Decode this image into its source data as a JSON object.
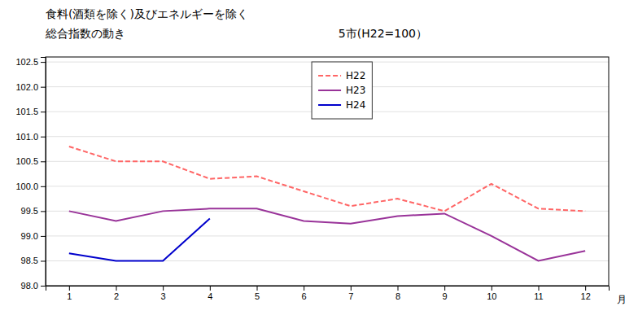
{
  "chart_data": {
    "type": "line",
    "title": "食料(酒類を除く)及びエネルギーを除く",
    "subtitle": "総合指数の動き",
    "annotations": [
      "5市(H22=100）"
    ],
    "x_label": "月",
    "x": [
      1,
      2,
      3,
      4,
      5,
      6,
      7,
      8,
      9,
      10,
      11,
      12
    ],
    "series": [
      {
        "name": "H22",
        "color": "#ff6666",
        "line_style": "dashed",
        "values": [
          100.8,
          100.5,
          100.5,
          100.15,
          100.2,
          99.9,
          99.6,
          99.75,
          99.5,
          100.05,
          99.55,
          99.5
        ]
      },
      {
        "name": "H23",
        "color": "#993399",
        "line_style": "solid",
        "values": [
          99.5,
          99.3,
          99.5,
          99.55,
          99.55,
          99.3,
          99.25,
          99.4,
          99.45,
          99.0,
          98.5,
          98.7
        ]
      },
      {
        "name": "H24",
        "color": "#0000cc",
        "line_style": "solid",
        "values": [
          98.65,
          98.5,
          98.5,
          99.35,
          null,
          null,
          null,
          null,
          null,
          null,
          null,
          null
        ]
      }
    ],
    "xlim": [
      0.5,
      12.5
    ],
    "xticks": [
      1,
      2,
      3,
      4,
      5,
      6,
      7,
      8,
      9,
      10,
      11,
      12
    ],
    "ylim": [
      98.0,
      102.6
    ],
    "yticks": [
      {
        "value": 98.0,
        "label": "98.0"
      },
      {
        "value": 98.5,
        "label": "98.5"
      },
      {
        "value": 99.0,
        "label": "99.0"
      },
      {
        "value": 99.5,
        "label": "99.5"
      },
      {
        "value": 100.0,
        "label": "100.0"
      },
      {
        "value": 100.5,
        "label": "100.5"
      },
      {
        "value": 101.0,
        "label": "101.0"
      },
      {
        "value": 101.5,
        "label": "101.5"
      },
      {
        "value": 102.0,
        "label": "102.0"
      },
      {
        "value": 102.5,
        "label": "102.5"
      }
    ],
    "grid": true,
    "legend": "top"
  }
}
